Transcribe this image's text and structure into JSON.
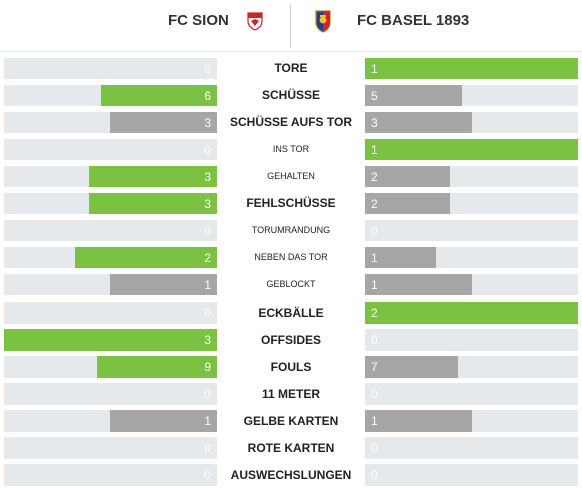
{
  "header": {
    "home_team": "FC SION",
    "away_team": "FC BASEL 1893"
  },
  "colors": {
    "leader": "#7cc242",
    "trailer": "#a6a6a6",
    "track": "#e6e9ec"
  },
  "stats": [
    {
      "label": "TORE",
      "home": "0",
      "away": "1",
      "sub": false
    },
    {
      "label": "SCHÜSSE",
      "home": "6",
      "away": "5",
      "sub": false
    },
    {
      "label": "SCHÜSSE AUFS TOR",
      "home": "3",
      "away": "3",
      "sub": false
    },
    {
      "label": "INS TOR",
      "home": "0",
      "away": "1",
      "sub": true
    },
    {
      "label": "GEHALTEN",
      "home": "3",
      "away": "2",
      "sub": true
    },
    {
      "label": "FEHLSCHÜSSE",
      "home": "3",
      "away": "2",
      "sub": false
    },
    {
      "label": "TORUMRANDUNG",
      "home": "0",
      "away": "0",
      "sub": true
    },
    {
      "label": "NEBEN DAS TOR",
      "home": "2",
      "away": "1",
      "sub": true
    },
    {
      "label": "GEBLOCKT",
      "home": "1",
      "away": "1",
      "sub": true
    },
    {
      "label": "ECKBÄLLE",
      "home": "0",
      "away": "2",
      "sub": false
    },
    {
      "label": "OFFSIDES",
      "home": "3",
      "away": "0",
      "sub": false
    },
    {
      "label": "FOULS",
      "home": "9",
      "away": "7",
      "sub": false
    },
    {
      "label": "11 METER",
      "home": "0",
      "away": "0",
      "sub": false
    },
    {
      "label": "GELBE KARTEN",
      "home": "1",
      "away": "1",
      "sub": false
    },
    {
      "label": "ROTE KARTEN",
      "home": "0",
      "away": "0",
      "sub": false
    },
    {
      "label": "AUSWECHSLUNGEN",
      "home": "0",
      "away": "0",
      "sub": false
    }
  ]
}
